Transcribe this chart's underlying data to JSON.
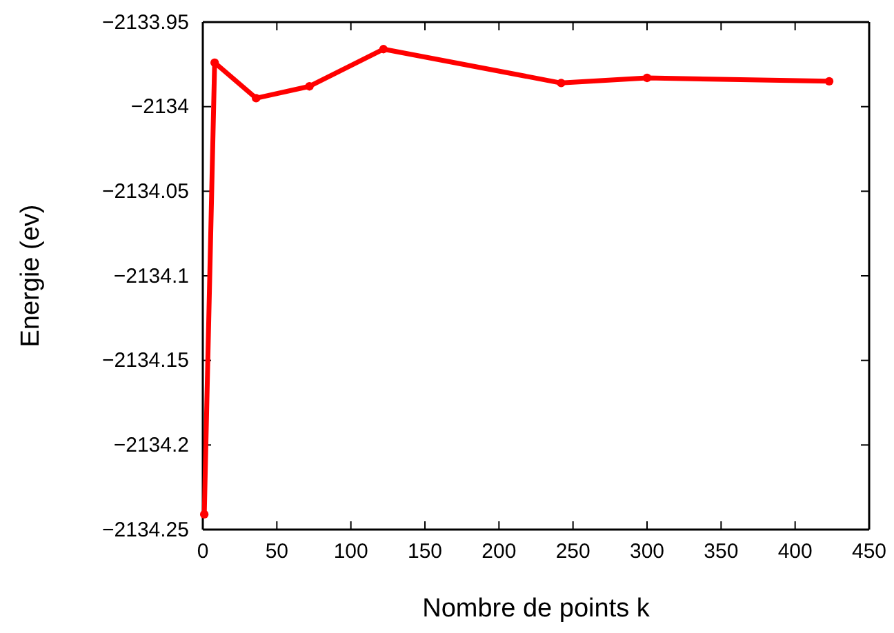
{
  "chart_data": {
    "type": "line",
    "xlabel": "Nombre de points k",
    "ylabel": "Energie (ev)",
    "x": [
      1,
      8,
      36,
      72,
      122,
      242,
      300,
      423
    ],
    "series": [
      {
        "color": "#ff0000",
        "values": [
          -2134.241,
          -2133.974,
          -2133.995,
          -2133.988,
          -2133.966,
          -2133.986,
          -2133.983,
          -2133.985
        ]
      }
    ],
    "xlim": [
      0,
      450
    ],
    "xticks": [
      0,
      50,
      100,
      150,
      200,
      250,
      300,
      350,
      400,
      450
    ],
    "ylim": [
      -2134.25,
      -2133.95
    ],
    "yticks": [
      {
        "value": -2134.25,
        "label": "−2134.25"
      },
      {
        "value": -2134.2,
        "label": "−2134.2"
      },
      {
        "value": -2134.15,
        "label": "−2134.15"
      },
      {
        "value": -2134.1,
        "label": "−2134.1"
      },
      {
        "value": -2134.05,
        "label": "−2134.05"
      },
      {
        "value": -2134,
        "label": "−2134"
      },
      {
        "value": -2133.95,
        "label": "−2133.95"
      }
    ],
    "marker": "circle",
    "line_style": "solid",
    "grid": false,
    "legend": false
  }
}
